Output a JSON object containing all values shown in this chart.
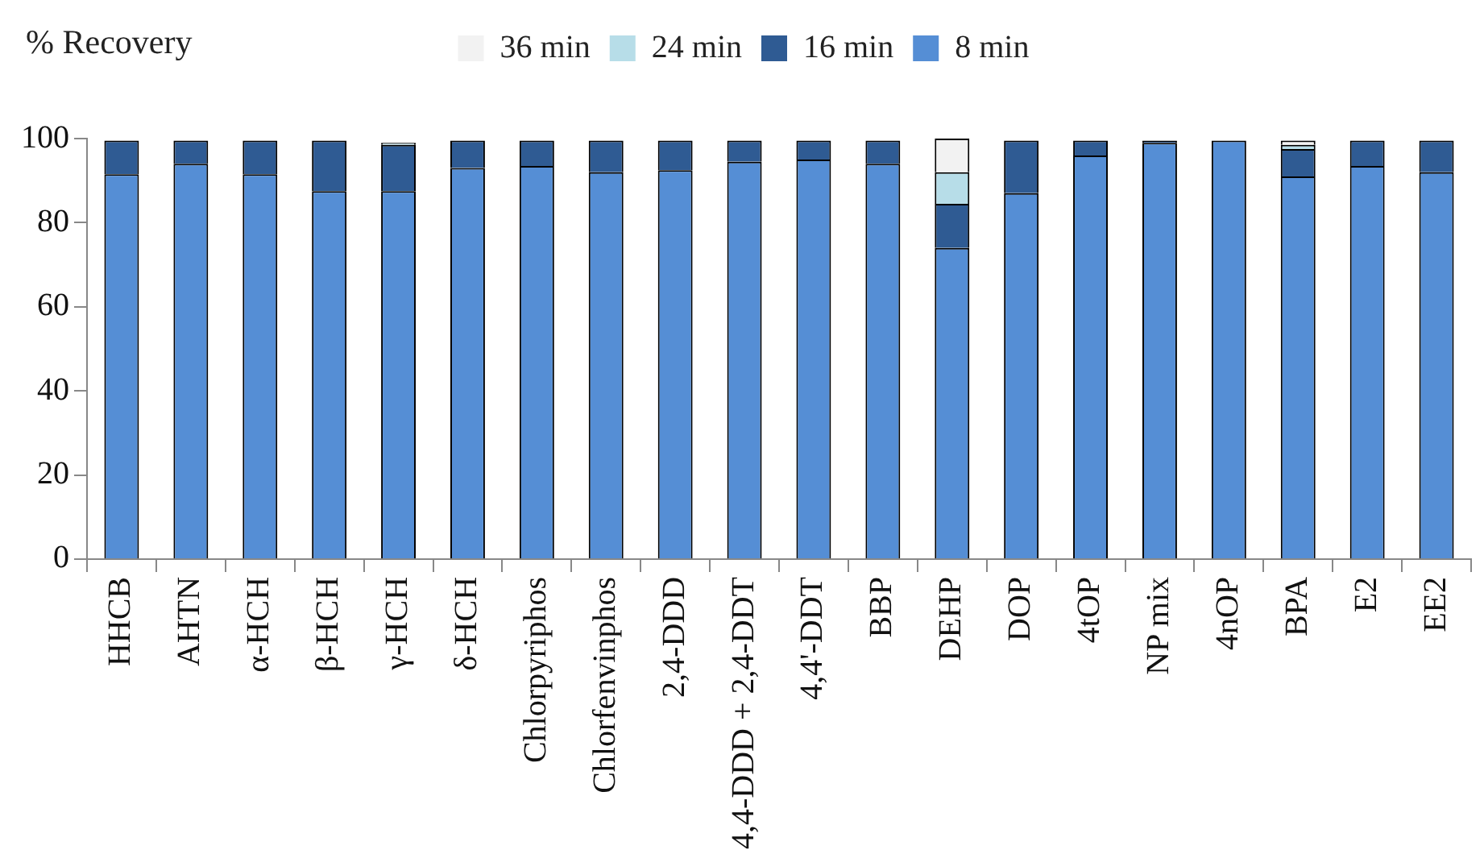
{
  "chart_data": {
    "type": "bar",
    "stacked": true,
    "ylabel": "% Recovery",
    "legend": "top",
    "grid": false,
    "categories": [
      "HHCB",
      "AHTN",
      "α-HCH",
      "β-HCH",
      "γ-HCH",
      "δ-HCH",
      "Chlorpyriphos",
      "Chlorfenvinphos",
      "2,4-DDD",
      "4,4-DDD + 2,4-DDT",
      "4,4'-DDT",
      "BBP",
      "DEHP",
      "DOP",
      "4tOP",
      "NP mix",
      "4nOP",
      "BPA",
      "E2",
      "EE2"
    ],
    "ylim": [
      0,
      100
    ],
    "yticks": [
      0,
      20,
      40,
      60,
      80,
      100
    ],
    "series": [
      {
        "name": "8 min",
        "color": "#558ed5",
        "values": [
          91.5,
          94,
          91.5,
          87.5,
          87.5,
          93,
          93.5,
          92,
          92.5,
          94.5,
          95,
          94,
          74,
          87,
          96,
          99,
          99.5,
          91,
          93.5,
          92
        ]
      },
      {
        "name": "16 min",
        "color": "#2f5b93",
        "values": [
          8,
          5.5,
          8,
          12,
          11,
          6.5,
          6,
          7.5,
          7,
          5,
          4.5,
          5.5,
          10.5,
          12.5,
          3.5,
          0.5,
          null,
          6.5,
          6,
          7.5
        ]
      },
      {
        "name": "24 min",
        "color": "#b7dde8",
        "values": [
          null,
          null,
          null,
          null,
          0.5,
          null,
          null,
          null,
          null,
          null,
          null,
          null,
          7.5,
          null,
          null,
          null,
          null,
          1,
          null,
          null
        ]
      },
      {
        "name": "36 min",
        "color": "#f2f2f2",
        "values": [
          null,
          null,
          null,
          null,
          null,
          null,
          null,
          null,
          null,
          null,
          null,
          null,
          8,
          null,
          null,
          null,
          null,
          1,
          null,
          null
        ]
      }
    ]
  }
}
